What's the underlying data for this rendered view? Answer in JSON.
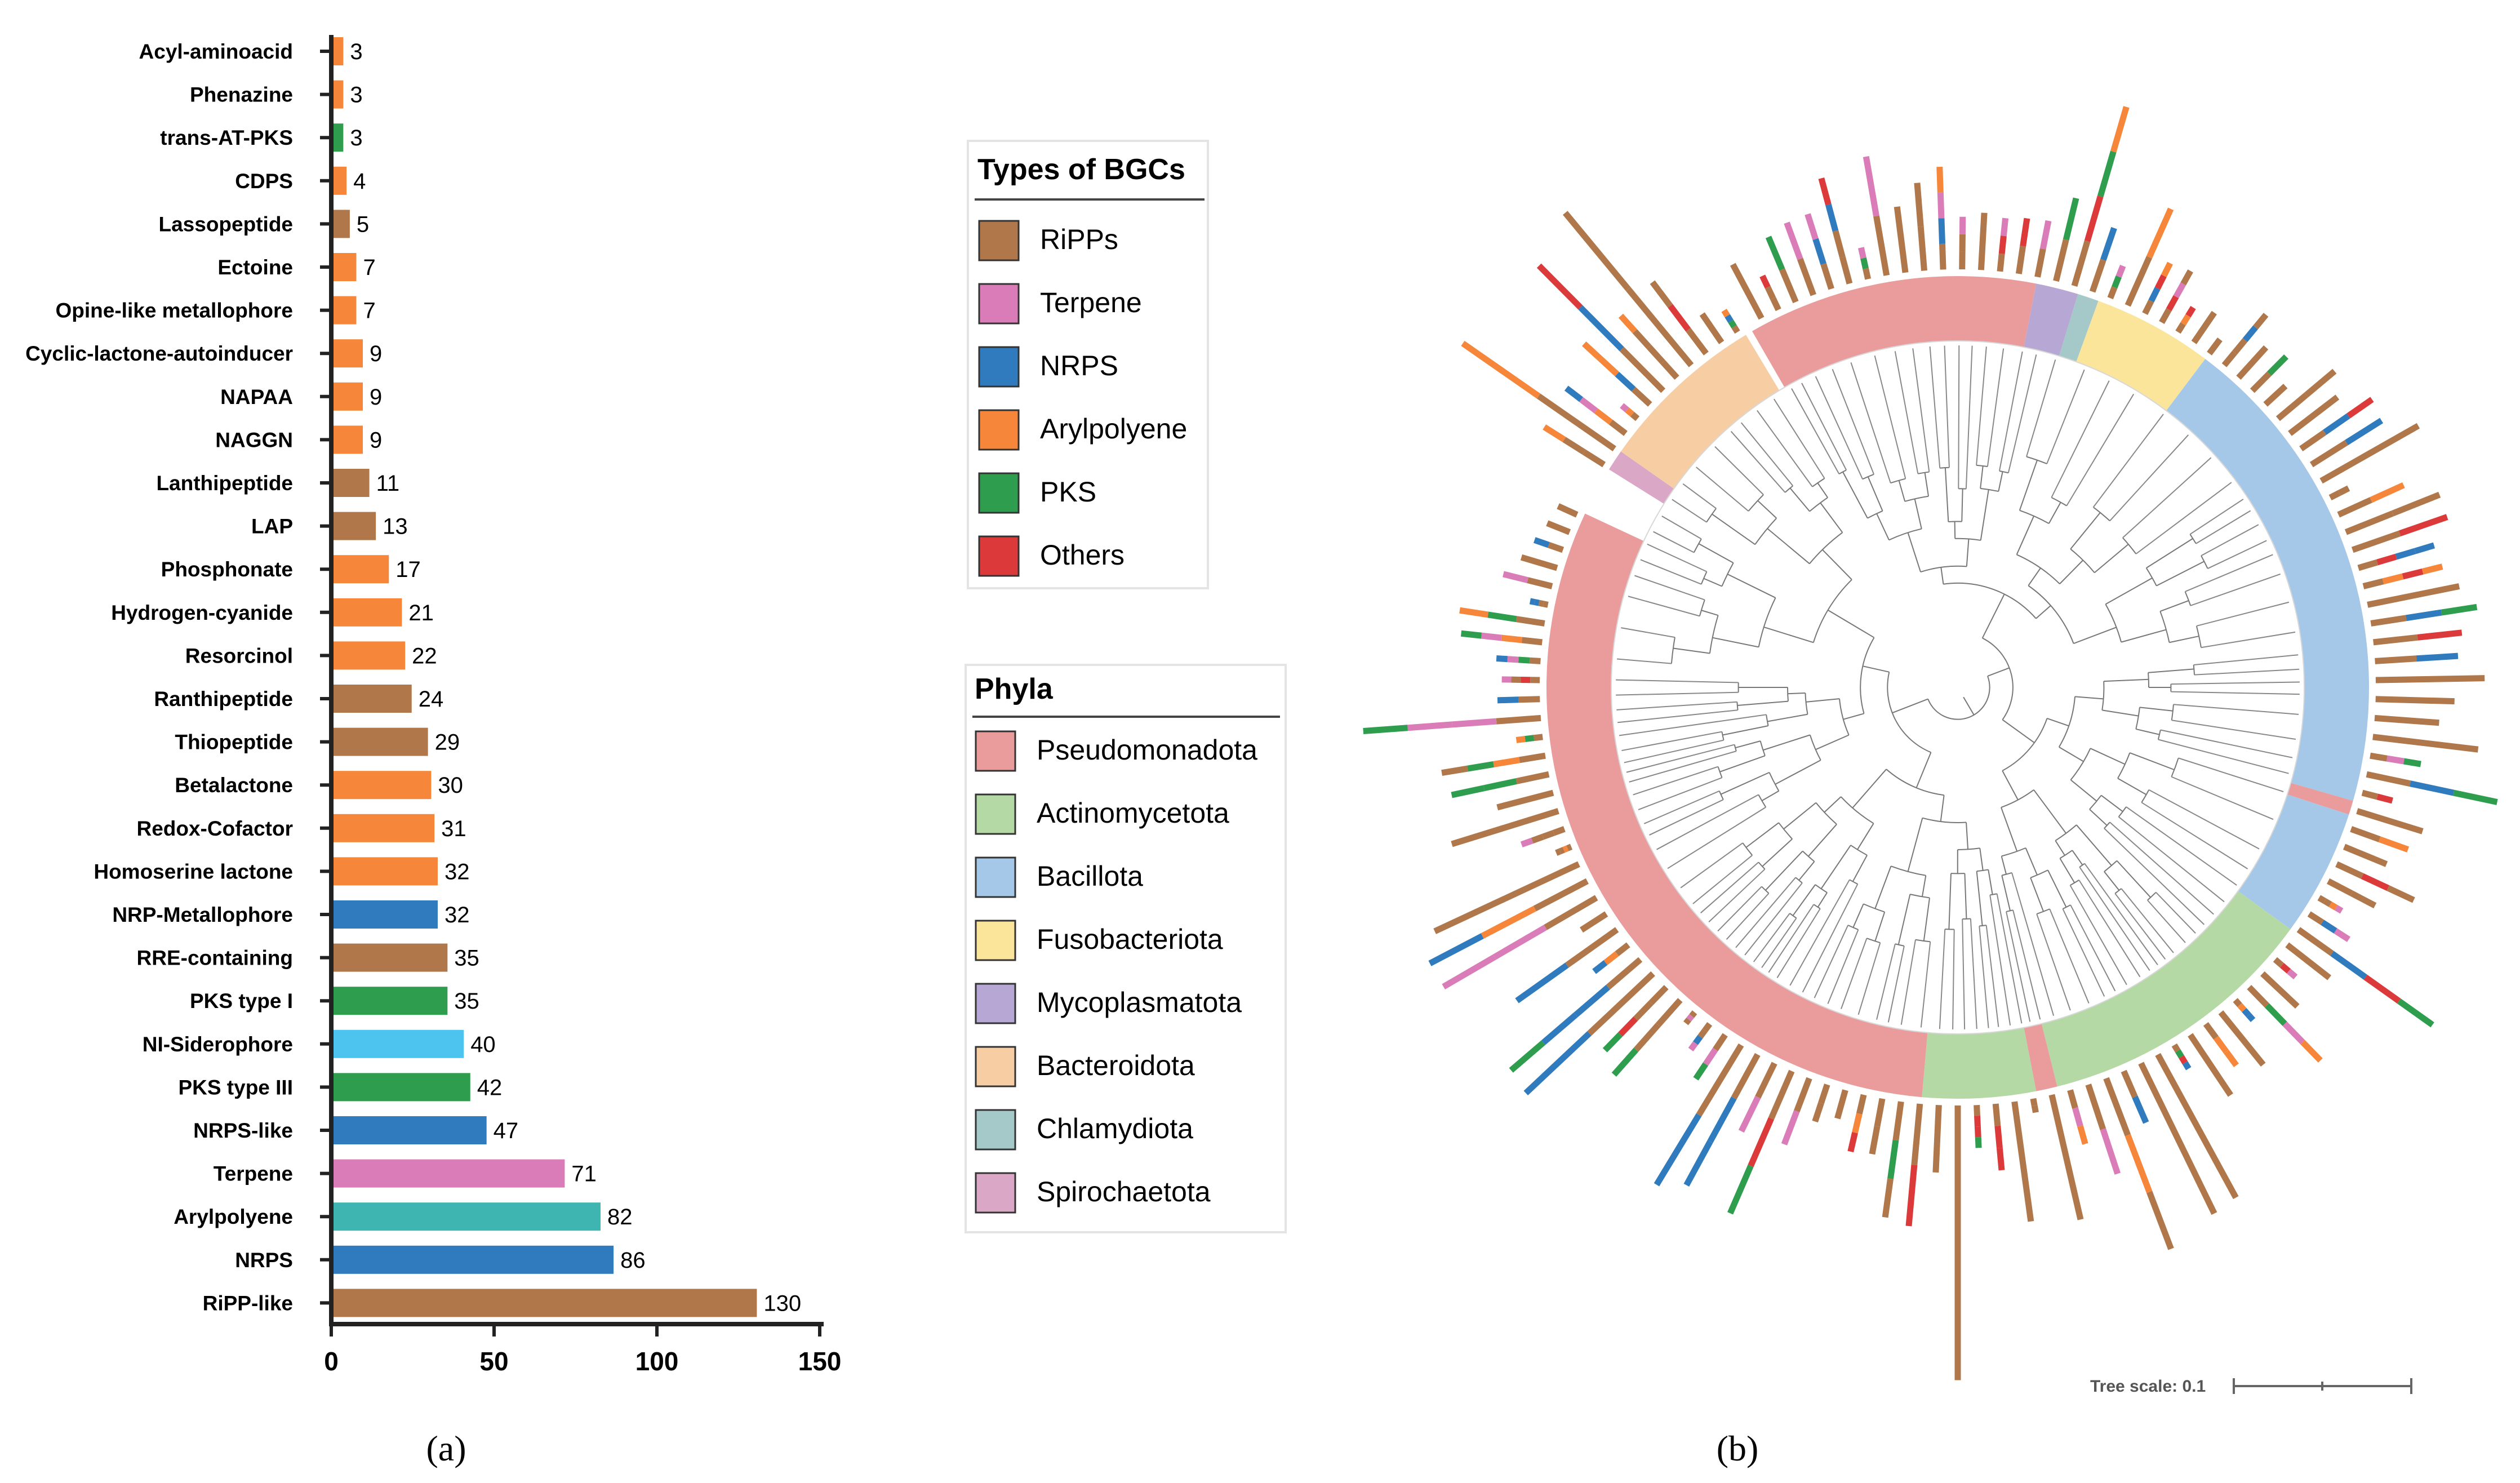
{
  "chart_data": [
    {
      "type": "bar",
      "orientation": "horizontal",
      "panel": "(a)",
      "categories": [
        "Acyl-aminoacid",
        "Phenazine",
        "trans-AT-PKS",
        "CDPS",
        "Lassopeptide",
        "Ectoine",
        "Opine-like metallophore",
        "Cyclic-lactone-autoinducer",
        "NAPAA",
        "NAGGN",
        "Lanthipeptide",
        "LAP",
        "Phosphonate",
        "Hydrogen-cyanide",
        "Resorcinol",
        "Ranthipeptide",
        "Thiopeptide",
        "Betalactone",
        "Redox-Cofactor",
        "Homoserine lactone",
        "NRP-Metallophore",
        "RRE-containing",
        "PKS type I",
        "NI-Siderophore",
        "PKS type III",
        "NRPS-like",
        "Terpene",
        "Arylpolyene",
        "NRPS",
        "RiPP-like"
      ],
      "values": [
        3,
        3,
        3,
        4,
        5,
        7,
        7,
        9,
        9,
        9,
        11,
        13,
        17,
        21,
        22,
        24,
        29,
        30,
        31,
        32,
        32,
        35,
        35,
        40,
        42,
        47,
        71,
        82,
        86,
        130
      ],
      "colors": [
        "#f5863a",
        "#f5863a",
        "#2e9e4e",
        "#f5863a",
        "#b0774a",
        "#f5863a",
        "#f5863a",
        "#f5863a",
        "#f5863a",
        "#f5863a",
        "#b0774a",
        "#b0774a",
        "#f5863a",
        "#f5863a",
        "#f5863a",
        "#b0774a",
        "#b0774a",
        "#f5863a",
        "#f5863a",
        "#f5863a",
        "#2f7bbd",
        "#b0774a",
        "#2e9e4e",
        "#4dc3f0",
        "#2e9e4e",
        "#2f7bbd",
        "#d97cb8",
        "#3fb5b2",
        "#2f7bbd",
        "#b0774a"
      ],
      "xlim": [
        0,
        150
      ],
      "xticks": [
        "0",
        "50",
        "100",
        "150"
      ],
      "xlabel": "",
      "ylabel": "",
      "title": ""
    },
    {
      "type": "other",
      "subtype": "circular phylogenetic tree with stacked BGC bars",
      "panel": "(b)",
      "legend_bgc": {
        "title": "Types of BGCs",
        "items": [
          {
            "label": "RiPPs",
            "color": "#b0774a"
          },
          {
            "label": "Terpene",
            "color": "#d97cb8"
          },
          {
            "label": "NRPS",
            "color": "#2f7bbd"
          },
          {
            "label": "Arylpolyene",
            "color": "#f5863a"
          },
          {
            "label": "PKS",
            "color": "#2e9e4e"
          },
          {
            "label": "Others",
            "color": "#dc3a3a"
          }
        ]
      },
      "legend_phyla": {
        "title": "Phyla",
        "items": [
          {
            "label": "Pseudomonadota",
            "color": "#ea9b9b"
          },
          {
            "label": "Actinomycetota",
            "color": "#b5d9a4"
          },
          {
            "label": "Bacillota",
            "color": "#a5c8e8"
          },
          {
            "label": "Fusobacteriota",
            "color": "#fbe59b"
          },
          {
            "label": "Mycoplasmatota",
            "color": "#b7a7d4"
          },
          {
            "label": "Bacteroidota",
            "color": "#f7cda3"
          },
          {
            "label": "Chlamydiota",
            "color": "#a4c9c8"
          },
          {
            "label": "Spirochaetota",
            "color": "#dba7c6"
          }
        ]
      },
      "tree_scale_label": "Tree scale: 0.1"
    }
  ]
}
